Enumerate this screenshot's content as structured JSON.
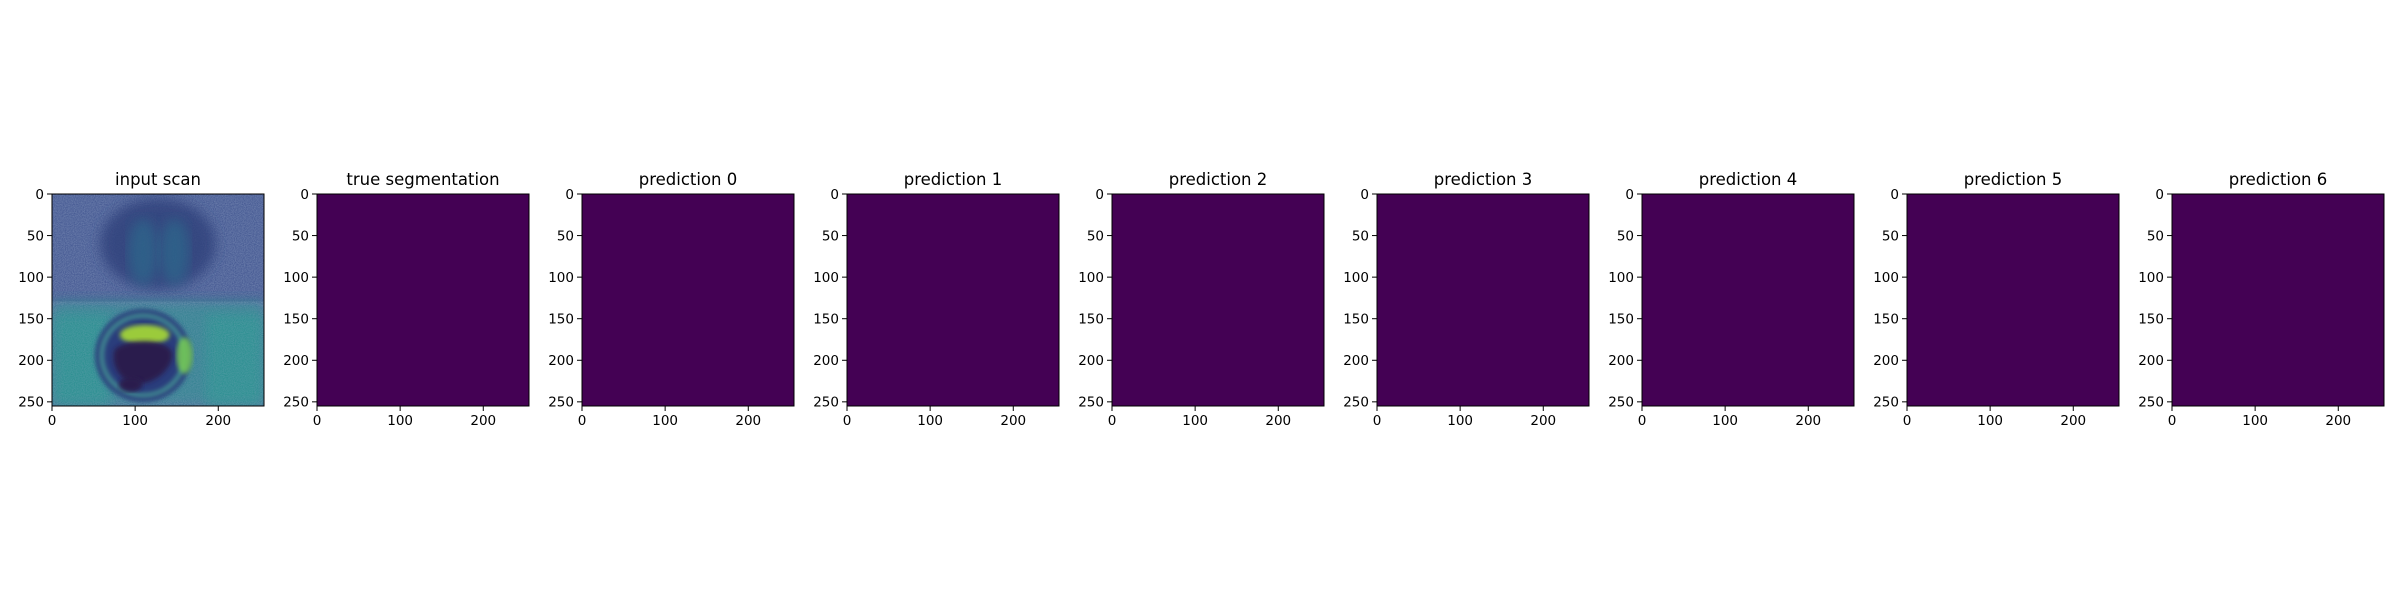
{
  "figure": {
    "background": "#ffffff",
    "colormap": "viridis"
  },
  "chart_data": [
    {
      "type": "heatmap",
      "title": "input scan",
      "content": "mri-scan",
      "xlim": [
        0,
        255
      ],
      "ylim": [
        255,
        0
      ],
      "xticks": [
        0,
        100,
        200
      ],
      "yticks": [
        0,
        50,
        100,
        150,
        200,
        250
      ],
      "fill_color": null
    },
    {
      "type": "heatmap",
      "title": "true segmentation",
      "content": "uniform",
      "value": 0,
      "xlim": [
        0,
        255
      ],
      "ylim": [
        255,
        0
      ],
      "xticks": [
        0,
        100,
        200
      ],
      "yticks": [
        0,
        50,
        100,
        150,
        200,
        250
      ],
      "fill_color": "#440154"
    },
    {
      "type": "heatmap",
      "title": "prediction 0",
      "content": "uniform",
      "value": 0,
      "xlim": [
        0,
        255
      ],
      "ylim": [
        255,
        0
      ],
      "xticks": [
        0,
        100,
        200
      ],
      "yticks": [
        0,
        50,
        100,
        150,
        200,
        250
      ],
      "fill_color": "#440154"
    },
    {
      "type": "heatmap",
      "title": "prediction 1",
      "content": "uniform",
      "value": 0,
      "xlim": [
        0,
        255
      ],
      "ylim": [
        255,
        0
      ],
      "xticks": [
        0,
        100,
        200
      ],
      "yticks": [
        0,
        50,
        100,
        150,
        200,
        250
      ],
      "fill_color": "#440154"
    },
    {
      "type": "heatmap",
      "title": "prediction 2",
      "content": "uniform",
      "value": 0,
      "xlim": [
        0,
        255
      ],
      "ylim": [
        255,
        0
      ],
      "xticks": [
        0,
        100,
        200
      ],
      "yticks": [
        0,
        50,
        100,
        150,
        200,
        250
      ],
      "fill_color": "#440154"
    },
    {
      "type": "heatmap",
      "title": "prediction 3",
      "content": "uniform",
      "value": 0,
      "xlim": [
        0,
        255
      ],
      "ylim": [
        255,
        0
      ],
      "xticks": [
        0,
        100,
        200
      ],
      "yticks": [
        0,
        50,
        100,
        150,
        200,
        250
      ],
      "fill_color": "#440154"
    },
    {
      "type": "heatmap",
      "title": "prediction 4",
      "content": "uniform",
      "value": 0,
      "xlim": [
        0,
        255
      ],
      "ylim": [
        255,
        0
      ],
      "xticks": [
        0,
        100,
        200
      ],
      "yticks": [
        0,
        50,
        100,
        150,
        200,
        250
      ],
      "fill_color": "#440154"
    },
    {
      "type": "heatmap",
      "title": "prediction 5",
      "content": "uniform",
      "value": 0,
      "xlim": [
        0,
        255
      ],
      "ylim": [
        255,
        0
      ],
      "xticks": [
        0,
        100,
        200
      ],
      "yticks": [
        0,
        50,
        100,
        150,
        200,
        250
      ],
      "fill_color": "#440154"
    },
    {
      "type": "heatmap",
      "title": "prediction 6",
      "content": "uniform",
      "value": 0,
      "xlim": [
        0,
        255
      ],
      "ylim": [
        255,
        0
      ],
      "xticks": [
        0,
        100,
        200
      ],
      "yticks": [
        0,
        50,
        100,
        150,
        200,
        250
      ],
      "fill_color": "#440154"
    }
  ]
}
